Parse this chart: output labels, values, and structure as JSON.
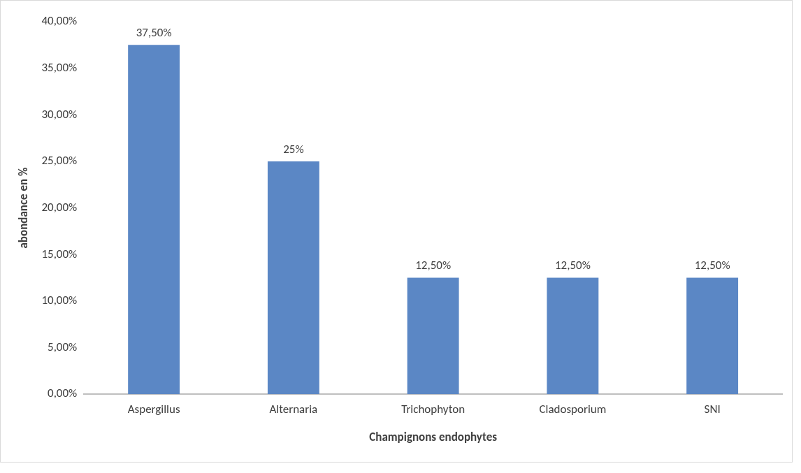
{
  "chart_data": {
    "type": "bar",
    "xlabel": "Champignons endophytes",
    "ylabel": "abondance en %",
    "categories": [
      "Aspergillus",
      "Alternaria",
      "Trichophyton",
      "Cladosporium",
      "SNI"
    ],
    "values": [
      37.5,
      25,
      12.5,
      12.5,
      12.5
    ],
    "value_labels": [
      "37,50%",
      "25%",
      "12,50%",
      "12,50%",
      "12,50%"
    ],
    "color": "#5b87c5",
    "ylim": [
      0,
      40
    ],
    "yticks": [
      {
        "value": 0,
        "label": "0,00%"
      },
      {
        "value": 5,
        "label": "5,00%"
      },
      {
        "value": 10,
        "label": "10,00%"
      },
      {
        "value": 15,
        "label": "15,00%"
      },
      {
        "value": 20,
        "label": "20,00%"
      },
      {
        "value": 25,
        "label": "25,00%"
      },
      {
        "value": 30,
        "label": "30,00%"
      },
      {
        "value": 35,
        "label": "35,00%"
      },
      {
        "value": 40,
        "label": "40,00%"
      }
    ],
    "grid": false,
    "legend": false
  }
}
